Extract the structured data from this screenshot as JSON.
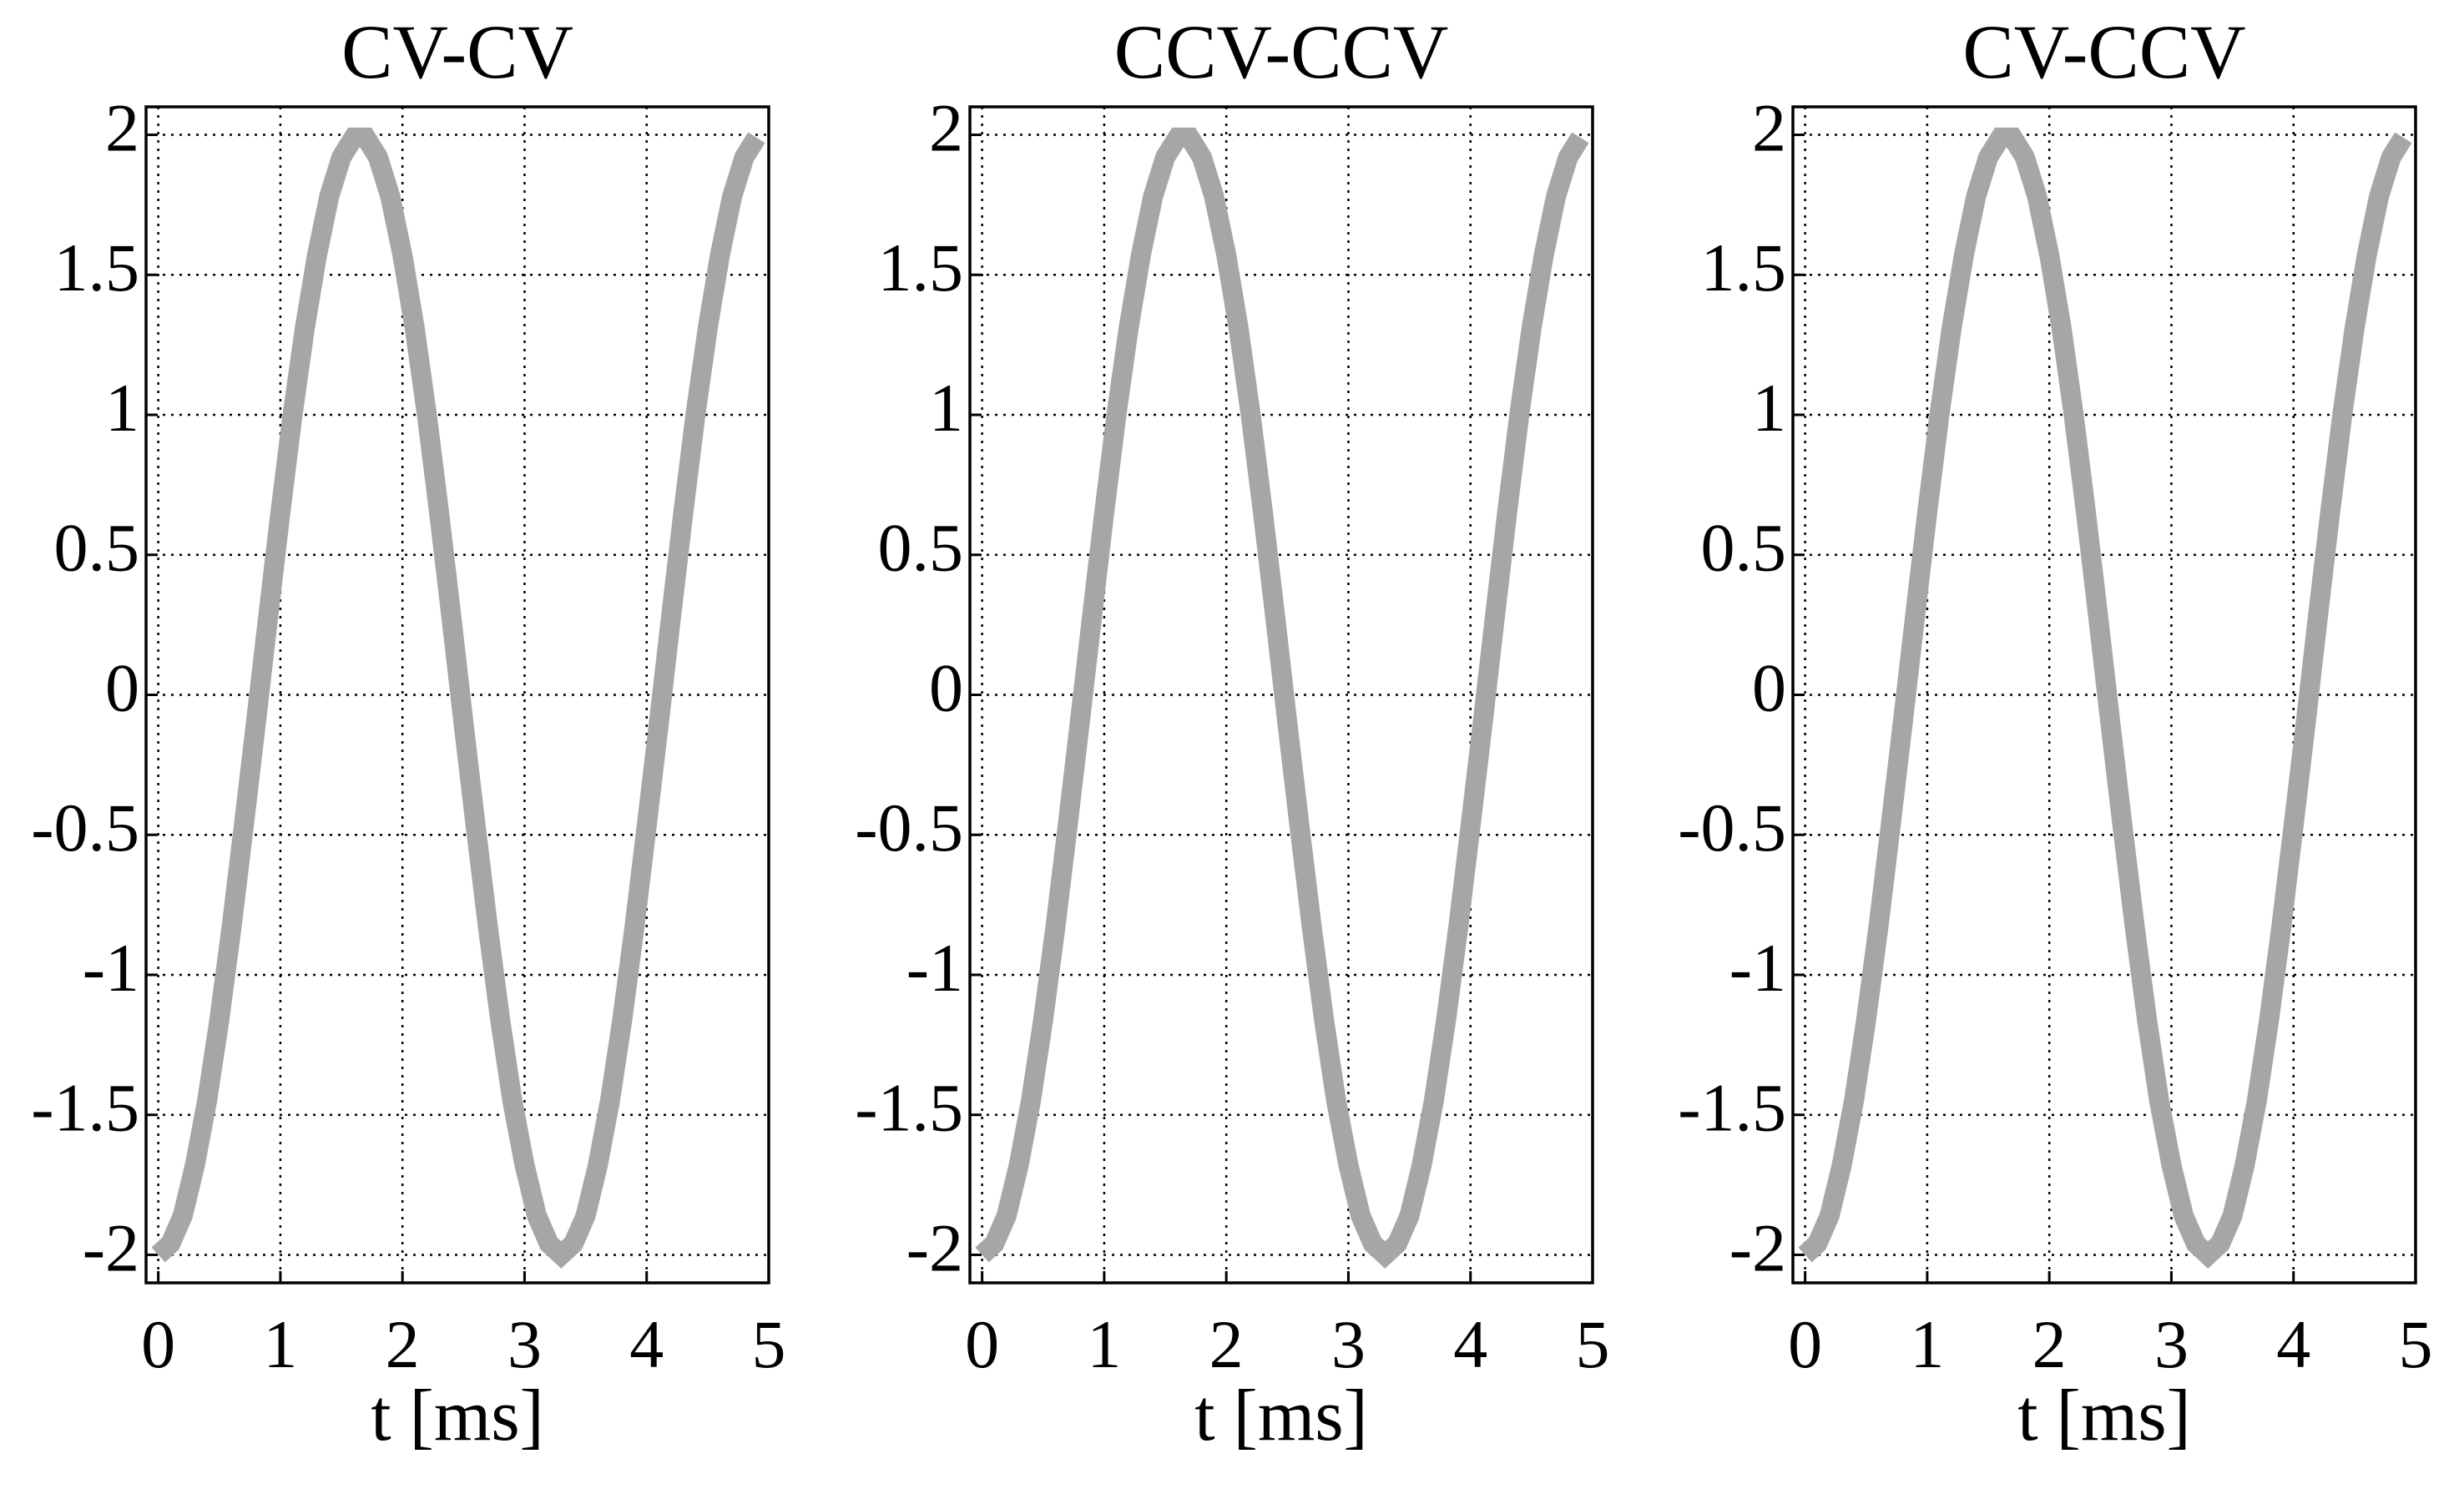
{
  "chart_data": [
    {
      "type": "line",
      "title": "CV-CV",
      "xlabel": "t [ms]",
      "color": "#a6a6a6",
      "x": [
        0,
        0.1,
        0.2,
        0.3,
        0.4,
        0.5,
        0.6,
        0.7,
        0.8,
        0.9,
        1,
        1.1,
        1.2,
        1.3,
        1.4,
        1.5,
        1.6,
        1.7,
        1.8,
        1.9,
        2,
        2.1,
        2.2,
        2.3,
        2.4,
        2.5,
        2.6,
        2.7,
        2.8,
        2.9,
        3,
        3.1,
        3.2,
        3.3,
        3.4,
        3.5,
        3.6,
        3.7,
        3.8,
        3.9,
        4,
        4.1,
        4.2,
        4.3,
        4.4,
        4.5,
        4.6,
        4.7,
        4.8,
        4.9
      ],
      "values": [
        -2,
        -1.96,
        -1.86,
        -1.68,
        -1.45,
        -1.16,
        -0.83,
        -0.47,
        -0.1,
        0.28,
        0.65,
        1,
        1.31,
        1.57,
        1.78,
        1.92,
        1.99,
        1.99,
        1.92,
        1.78,
        1.57,
        1.31,
        1,
        0.65,
        0.28,
        -0.1,
        -0.47,
        -0.83,
        -1.16,
        -1.45,
        -1.68,
        -1.86,
        -1.96,
        -2,
        -1.96,
        -1.86,
        -1.68,
        -1.45,
        -1.16,
        -0.83,
        -0.47,
        -0.1,
        0.28,
        0.65,
        1,
        1.31,
        1.57,
        1.78,
        1.92,
        1.99
      ],
      "xlim": [
        -0.1,
        5
      ],
      "xticks": [
        0,
        1,
        2,
        3,
        4,
        5
      ],
      "ylim": [
        -2.1,
        2.1
      ],
      "yticks": [
        2,
        1.5,
        1,
        0.5,
        0,
        -0.5,
        -1,
        -1.5,
        -2
      ],
      "grid": true
    },
    {
      "type": "line",
      "title": "CCV-CCV",
      "xlabel": "t [ms]",
      "color": "#a6a6a6",
      "x": [
        0,
        0.1,
        0.2,
        0.3,
        0.4,
        0.5,
        0.6,
        0.7,
        0.8,
        0.9,
        1,
        1.1,
        1.2,
        1.3,
        1.4,
        1.5,
        1.6,
        1.7,
        1.8,
        1.9,
        2,
        2.1,
        2.2,
        2.3,
        2.4,
        2.5,
        2.6,
        2.7,
        2.8,
        2.9,
        3,
        3.1,
        3.2,
        3.3,
        3.4,
        3.5,
        3.6,
        3.7,
        3.8,
        3.9,
        4,
        4.1,
        4.2,
        4.3,
        4.4,
        4.5,
        4.6,
        4.7,
        4.8,
        4.9
      ],
      "values": [
        -2,
        -1.96,
        -1.86,
        -1.68,
        -1.45,
        -1.16,
        -0.83,
        -0.47,
        -0.1,
        0.28,
        0.65,
        1,
        1.31,
        1.57,
        1.78,
        1.92,
        1.99,
        1.99,
        1.92,
        1.78,
        1.57,
        1.31,
        1,
        0.65,
        0.28,
        -0.1,
        -0.47,
        -0.83,
        -1.16,
        -1.45,
        -1.68,
        -1.86,
        -1.96,
        -2,
        -1.96,
        -1.86,
        -1.68,
        -1.45,
        -1.16,
        -0.83,
        -0.47,
        -0.1,
        0.28,
        0.65,
        1,
        1.31,
        1.57,
        1.78,
        1.92,
        1.99
      ],
      "xlim": [
        -0.1,
        5
      ],
      "xticks": [
        0,
        1,
        2,
        3,
        4,
        5
      ],
      "ylim": [
        -2.1,
        2.1
      ],
      "yticks": [
        2,
        1.5,
        1,
        0.5,
        0,
        -0.5,
        -1,
        -1.5,
        -2
      ],
      "grid": true
    },
    {
      "type": "line",
      "title": "CV-CCV",
      "xlabel": "t [ms]",
      "color": "#a6a6a6",
      "x": [
        0,
        0.1,
        0.2,
        0.3,
        0.4,
        0.5,
        0.6,
        0.7,
        0.8,
        0.9,
        1,
        1.1,
        1.2,
        1.3,
        1.4,
        1.5,
        1.6,
        1.7,
        1.8,
        1.9,
        2,
        2.1,
        2.2,
        2.3,
        2.4,
        2.5,
        2.6,
        2.7,
        2.8,
        2.9,
        3,
        3.1,
        3.2,
        3.3,
        3.4,
        3.5,
        3.6,
        3.7,
        3.8,
        3.9,
        4,
        4.1,
        4.2,
        4.3,
        4.4,
        4.5,
        4.6,
        4.7,
        4.8,
        4.9
      ],
      "values": [
        -2,
        -1.96,
        -1.86,
        -1.68,
        -1.45,
        -1.16,
        -0.83,
        -0.47,
        -0.1,
        0.28,
        0.65,
        1,
        1.31,
        1.57,
        1.78,
        1.92,
        1.99,
        1.99,
        1.92,
        1.78,
        1.57,
        1.31,
        1,
        0.65,
        0.28,
        -0.1,
        -0.47,
        -0.83,
        -1.16,
        -1.45,
        -1.68,
        -1.86,
        -1.96,
        -2,
        -1.96,
        -1.86,
        -1.68,
        -1.45,
        -1.16,
        -0.83,
        -0.47,
        -0.1,
        0.28,
        0.65,
        1,
        1.31,
        1.57,
        1.78,
        1.92,
        1.99
      ],
      "xlim": [
        -0.1,
        5
      ],
      "xticks": [
        0,
        1,
        2,
        3,
        4,
        5
      ],
      "ylim": [
        -2.1,
        2.1
      ],
      "yticks": [
        2,
        1.5,
        1,
        0.5,
        0,
        -0.5,
        -1,
        -1.5,
        -2
      ],
      "grid": true
    }
  ]
}
